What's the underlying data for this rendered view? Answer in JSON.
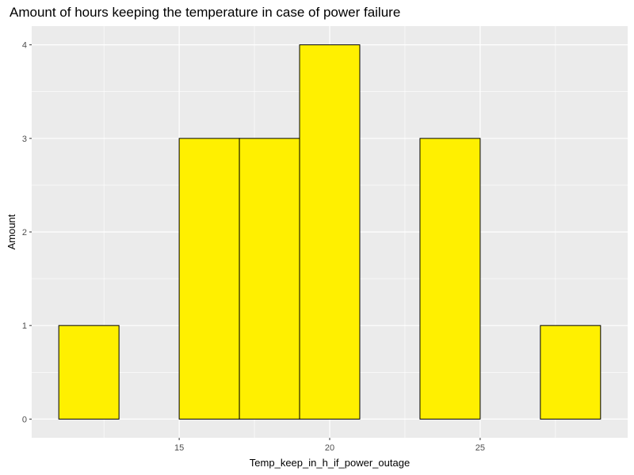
{
  "chart_data": {
    "type": "bar",
    "title": "Amount of hours keeping the temperature in case of power failure",
    "xlabel": "Temp_keep_in_h_if_power_outage",
    "ylabel": "Amount",
    "bin_width": 2,
    "bins": [
      {
        "x_start": 11,
        "x_end": 13,
        "count": 1
      },
      {
        "x_start": 13,
        "x_end": 15,
        "count": 0
      },
      {
        "x_start": 15,
        "x_end": 17,
        "count": 3
      },
      {
        "x_start": 17,
        "x_end": 19,
        "count": 3
      },
      {
        "x_start": 19,
        "x_end": 21,
        "count": 4
      },
      {
        "x_start": 21,
        "x_end": 23,
        "count": 0
      },
      {
        "x_start": 23,
        "x_end": 25,
        "count": 3
      },
      {
        "x_start": 25,
        "x_end": 27,
        "count": 0
      },
      {
        "x_start": 27,
        "x_end": 29,
        "count": 1
      }
    ],
    "xlim": [
      10.1,
      29.9
    ],
    "ylim": [
      -0.2,
      4.2
    ],
    "x_ticks": [
      "15",
      "20",
      "25"
    ],
    "y_ticks": [
      "0",
      "1",
      "2",
      "3",
      "4"
    ],
    "bar_fill": "#FFF000",
    "bar_stroke": "#000000",
    "panel_background": "#EBEBEB",
    "grid": true,
    "legend": "none"
  }
}
